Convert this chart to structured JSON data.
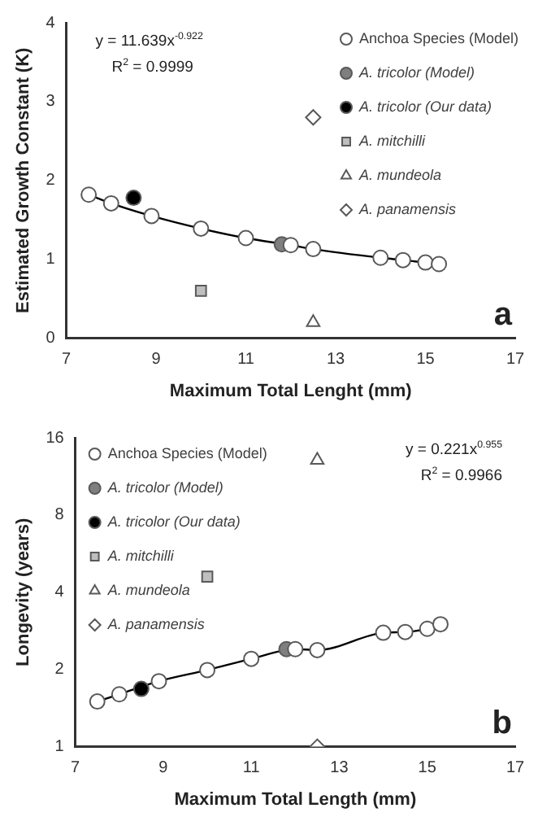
{
  "chart_data": [
    {
      "type": "scatter",
      "xlabel": "Maximum Total Lenght (mm)",
      "ylabel": "Estimated Growth Constant (K)",
      "xlim": [
        7,
        17
      ],
      "xticks": [
        7,
        9,
        11,
        13,
        15,
        17
      ],
      "ylim": [
        0,
        4
      ],
      "yticks": [
        0,
        1,
        2,
        3,
        4
      ],
      "grid": false,
      "legend": "top right",
      "annotations": [
        "y = 11.639x$^{-0.922}$",
        "R$^{2}$ = 0.9999",
        "a"
      ],
      "series": [
        {
          "type": "line",
          "color": "#000000",
          "marker": "none",
          "x": [
            7.5,
            8,
            8.9,
            10,
            11,
            12,
            12.5,
            14,
            14.5,
            15,
            15.3
          ],
          "values": [
            1.82,
            1.71,
            1.55,
            1.39,
            1.27,
            1.18,
            1.13,
            1.02,
            0.99,
            0.96,
            0.94
          ]
        },
        {
          "name": "Anchoa Species (Model)",
          "color": "#ffffff",
          "marker": "circle",
          "x": [
            7.5,
            8,
            8.9,
            10,
            11,
            12,
            12.5,
            14,
            14.5,
            15,
            15.3
          ],
          "values": [
            1.82,
            1.71,
            1.55,
            1.39,
            1.27,
            1.18,
            1.13,
            1.02,
            0.99,
            0.96,
            0.94
          ]
        },
        {
          "name": "A. tricolor (Model)",
          "color": "#7f7f7f",
          "marker": "circle",
          "x": [
            11.8
          ],
          "values": [
            1.19
          ]
        },
        {
          "name": "A. tricolor (Our data)",
          "color": "#000000",
          "marker": "circle",
          "x": [
            8.5
          ],
          "values": [
            1.78
          ]
        },
        {
          "name": "A. mitchilli",
          "color": "#bfbfbf",
          "marker": "square",
          "x": [
            10
          ],
          "values": [
            0.6
          ]
        },
        {
          "name": "A. mundeola",
          "color": "#ffffff",
          "marker": "triangle",
          "x": [
            12.5
          ],
          "values": [
            0.2
          ]
        },
        {
          "name": "A. panamensis",
          "color": "#ffffff",
          "marker": "diamond",
          "x": [
            12.5
          ],
          "values": [
            2.8
          ]
        }
      ]
    },
    {
      "type": "scatter",
      "xlabel": "Maximum Total Length (mm)",
      "ylabel": "Longevity (years)",
      "xlim": [
        7,
        17
      ],
      "xticks": [
        7,
        9,
        11,
        13,
        15,
        17
      ],
      "ylim": [
        1,
        16
      ],
      "yticks": [
        1,
        2,
        4,
        8,
        16
      ],
      "log": "y",
      "grid": false,
      "legend": "top left",
      "annotations": [
        "y = 0.221x$^{0.955}$",
        "R$^{2}$ = 0.9966",
        "b"
      ],
      "series": [
        {
          "type": "line",
          "color": "#000000",
          "marker": "none",
          "x": [
            7.5,
            8,
            8.9,
            10,
            11,
            12,
            12.5,
            14,
            14.5,
            15,
            15.3
          ],
          "values": [
            1.5,
            1.6,
            1.8,
            1.99,
            2.2,
            2.4,
            2.38,
            2.78,
            2.8,
            2.88,
            3.0
          ]
        },
        {
          "name": "Anchoa Species (Model)",
          "color": "#ffffff",
          "marker": "circle",
          "x": [
            7.5,
            8,
            8.9,
            10,
            11,
            12,
            12.5,
            14,
            14.5,
            15,
            15.3
          ],
          "values": [
            1.5,
            1.6,
            1.8,
            1.99,
            2.2,
            2.4,
            2.38,
            2.78,
            2.8,
            2.88,
            3.0
          ]
        },
        {
          "name": "A. tricolor (Model)",
          "color": "#7f7f7f",
          "marker": "circle",
          "x": [
            11.8
          ],
          "values": [
            2.4
          ]
        },
        {
          "name": "A. tricolor (Our data)",
          "color": "#000000",
          "marker": "circle",
          "x": [
            8.5
          ],
          "values": [
            1.68
          ]
        },
        {
          "name": "A. mitchilli",
          "color": "#bfbfbf",
          "marker": "square",
          "x": [
            10
          ],
          "values": [
            4.6
          ]
        },
        {
          "name": "A. mundeola",
          "color": "#ffffff",
          "marker": "triangle",
          "x": [
            12.5
          ],
          "values": [
            13.1
          ]
        },
        {
          "name": "A. panamensis",
          "color": "#ffffff",
          "marker": "diamond",
          "x": [
            12.5
          ],
          "values": [
            1
          ]
        }
      ]
    }
  ]
}
